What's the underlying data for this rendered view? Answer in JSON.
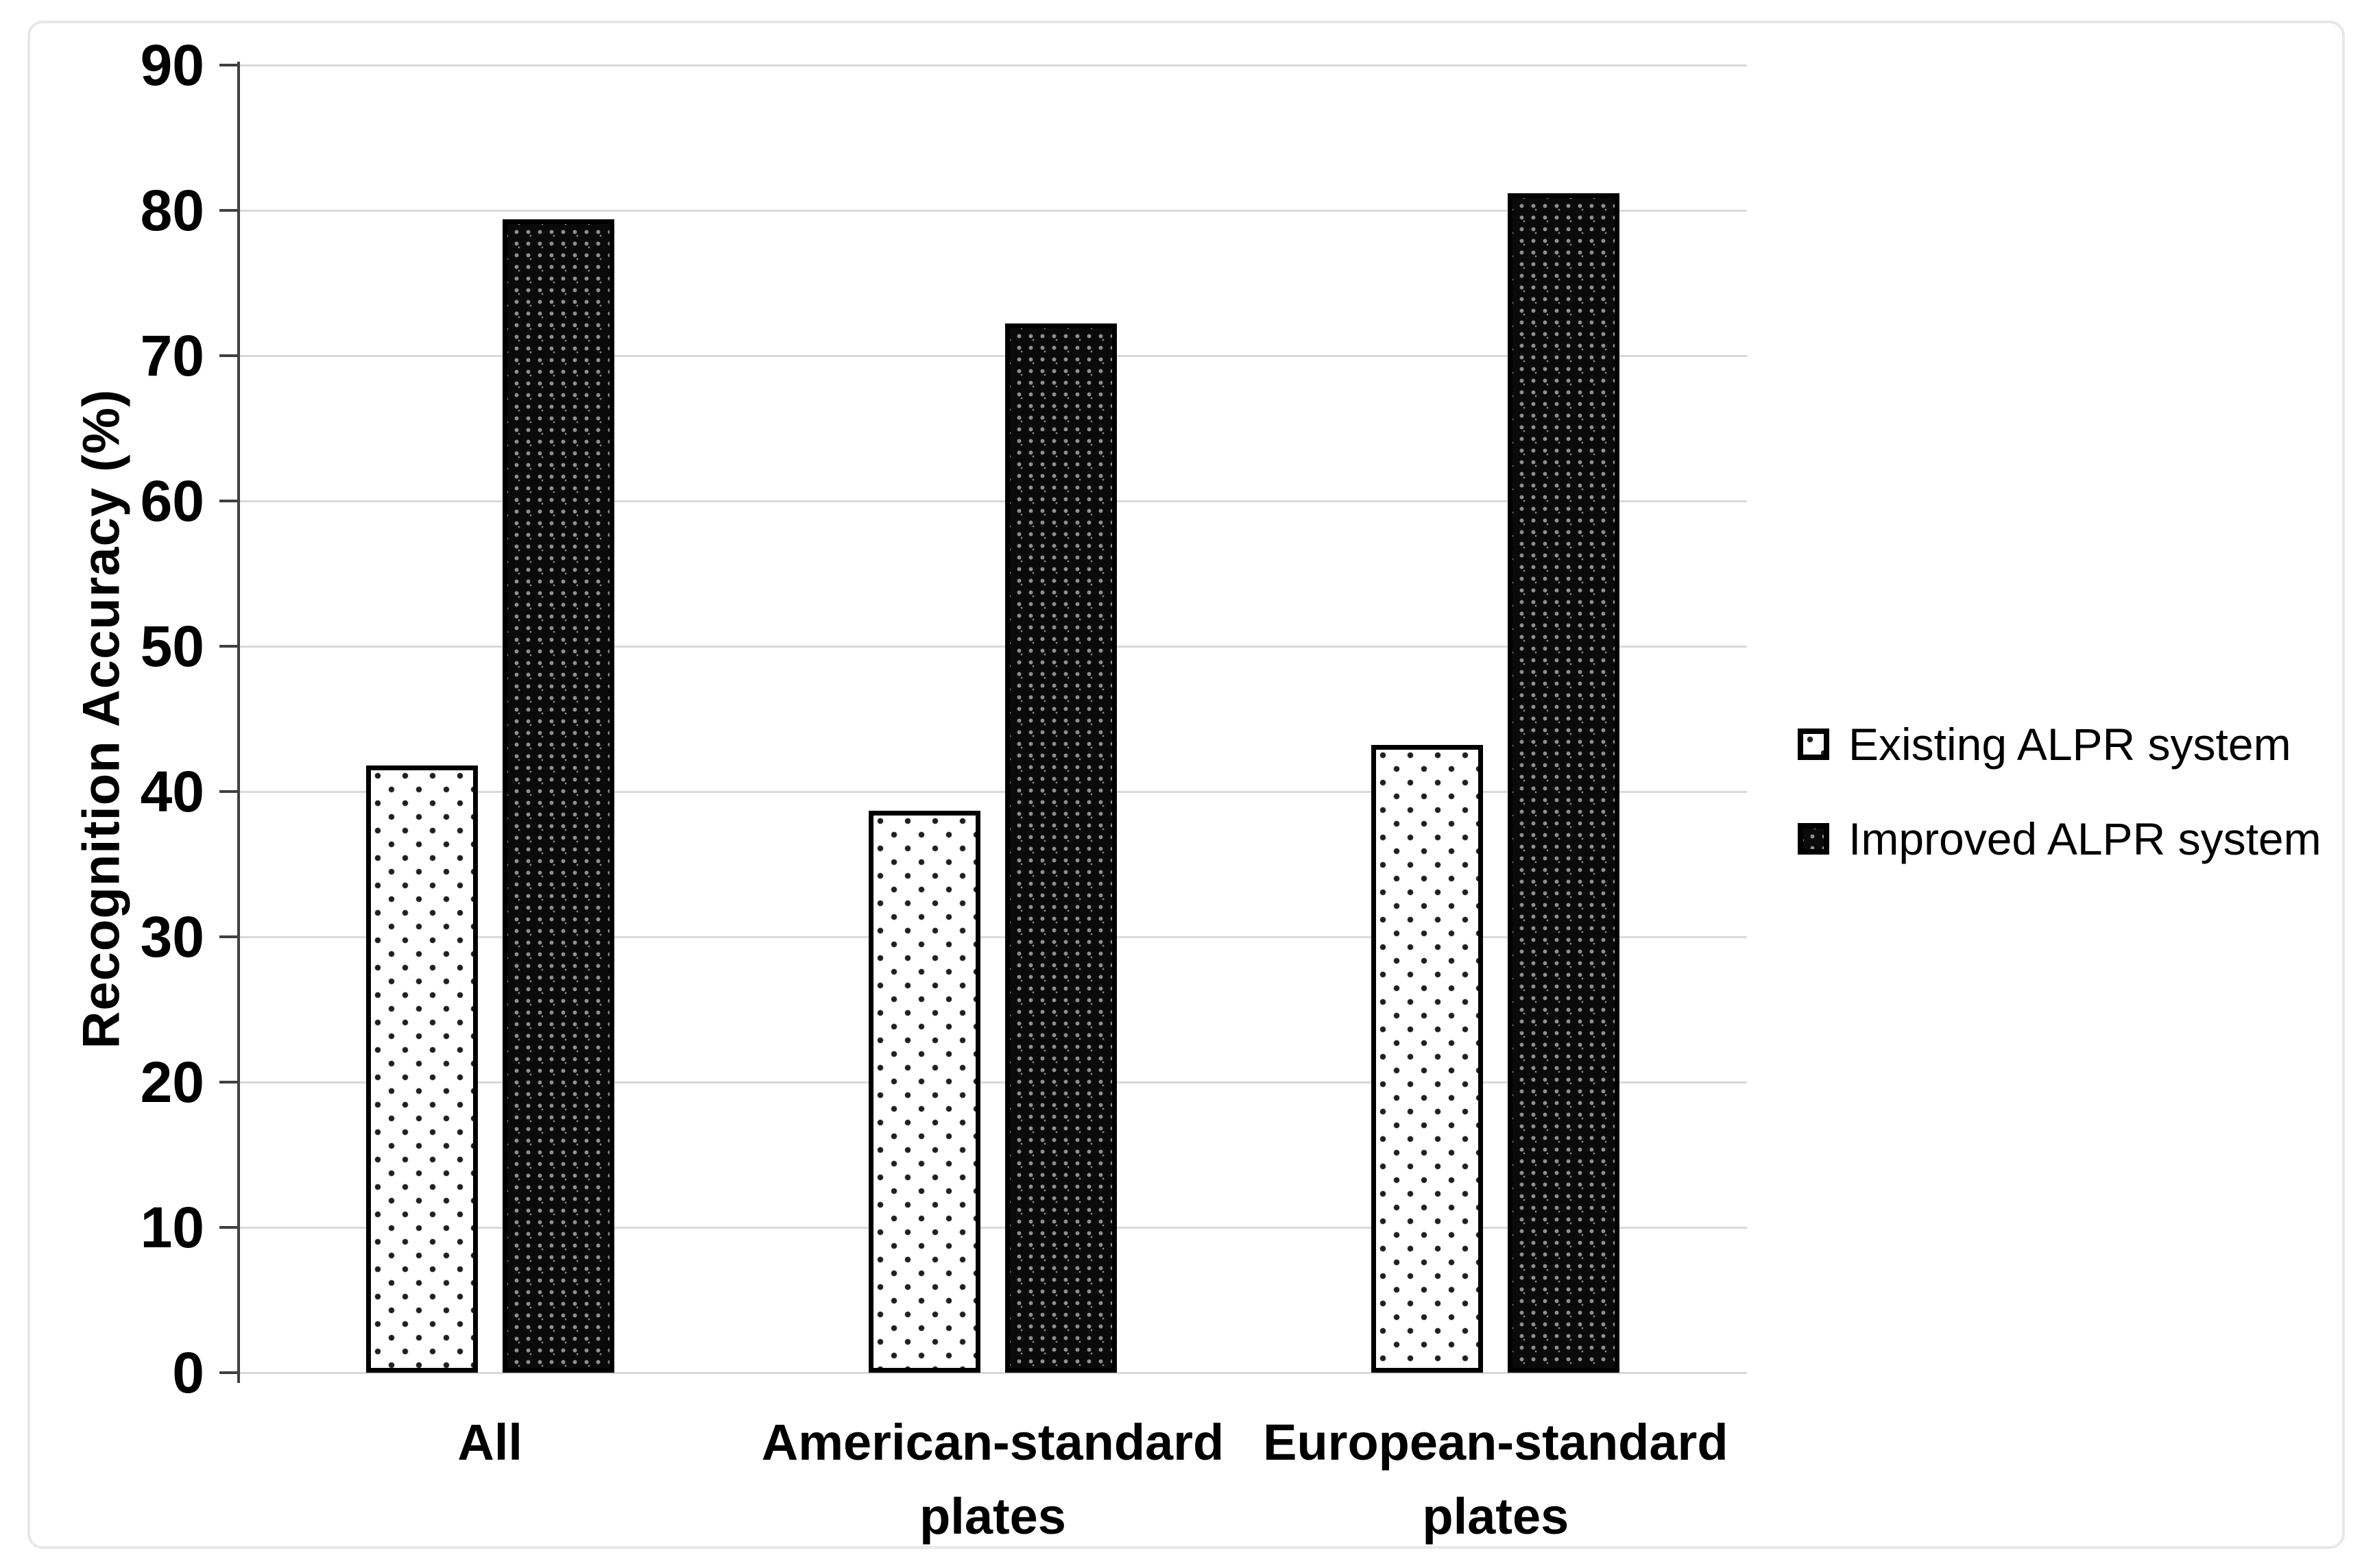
{
  "chart_data": {
    "type": "bar",
    "categories": [
      "All",
      "American-standard plates",
      "European-standard plates"
    ],
    "series": [
      {
        "name": "Existing ALPR system",
        "values": [
          41.8,
          38.7,
          43.2
        ],
        "pattern": "dotted-light"
      },
      {
        "name": "Improved ALPR system",
        "values": [
          79.4,
          72.2,
          81.2
        ],
        "pattern": "beads-dark"
      }
    ],
    "title": "",
    "xlabel": "",
    "ylabel": "Recognition Accuracy (%)",
    "ylim": [
      0,
      90
    ],
    "yticks": [
      0,
      10,
      20,
      30,
      40,
      50,
      60,
      70,
      80,
      90
    ],
    "grid": true,
    "legend_position": "right"
  },
  "colors": {
    "gridline": "#d9d9d9",
    "axis": "#404040",
    "bar_outline": "#000000",
    "text": "#000000",
    "frame_border": "#e8e8e8"
  }
}
